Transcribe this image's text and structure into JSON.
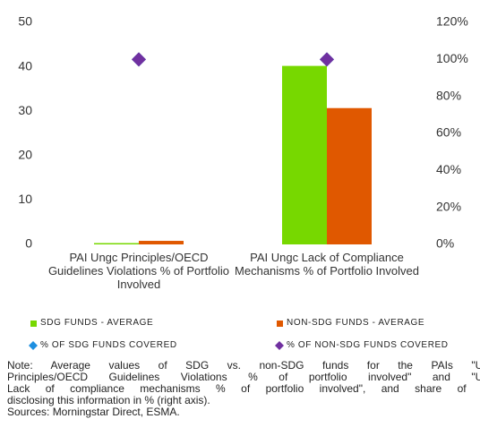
{
  "chart_data": {
    "type": "bar",
    "categories": [
      "PAI Ungc Principles/OECD Guidelines Violations % of Portfolio Involved",
      "PAI Ungc Lack of Compliance Mechanisms % of Portfolio Involved"
    ],
    "series": [
      {
        "name": "SDG FUNDS - AVERAGE",
        "type": "bar",
        "color": "#77d800",
        "values": [
          0.3,
          40.2
        ]
      },
      {
        "name": "NON-SDG FUNDS - AVERAGE",
        "type": "bar",
        "color": "#e05800",
        "values": [
          0.8,
          30.7
        ]
      },
      {
        "name": "% OF SDG FUNDS COVERED",
        "type": "scatter",
        "axis": "y2",
        "color": "#1e8fe0",
        "values": [
          100,
          100
        ]
      },
      {
        "name": "% OF NON-SDG FUNDS COVERED",
        "type": "scatter",
        "axis": "y2",
        "color": "#7030a0",
        "values": [
          100,
          100
        ]
      }
    ],
    "ylim": [
      0,
      50
    ],
    "yticks": [
      0,
      10,
      20,
      30,
      40,
      50
    ],
    "y2lim": [
      0,
      120
    ],
    "y2ticks": [
      {
        "value": 0,
        "label": "0%"
      },
      {
        "value": 20,
        "label": "20%"
      },
      {
        "value": 40,
        "label": "40%"
      },
      {
        "value": 60,
        "label": "60%"
      },
      {
        "value": 80,
        "label": "80%"
      },
      {
        "value": 100,
        "label": "100%"
      },
      {
        "value": 120,
        "label": "120%"
      }
    ],
    "grid": false,
    "note": [
      "Note: Average values of SDG vs. non-SDG funds for the PAIs \"UN",
      "Principles/OECD Guidelines Violations % of portfolio involved\" and \"UN",
      "Lack of compliance mechanisms % of portfolio involved\", and share of fu",
      "disclosing this information in % (right axis)."
    ],
    "source": "Sources: Morningstar Direct, ESMA."
  }
}
